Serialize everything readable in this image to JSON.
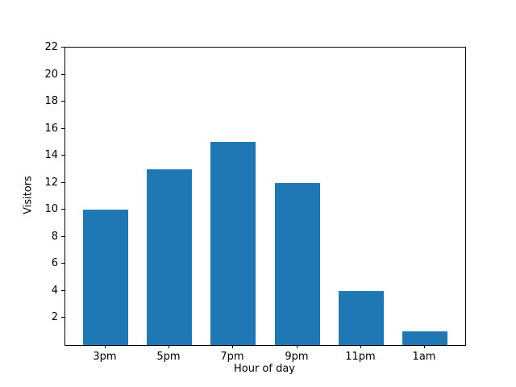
{
  "chart_data": {
    "type": "bar",
    "title": "",
    "categories": [
      "3pm",
      "5pm",
      "7pm",
      "9pm",
      "11pm",
      "1am"
    ],
    "values": [
      10,
      13,
      15,
      12,
      4,
      1
    ],
    "xlabel": "Hour of day",
    "ylabel": "Visitors",
    "ylim": [
      0,
      22
    ],
    "yticks": [
      2,
      4,
      6,
      8,
      10,
      12,
      14,
      16,
      18,
      20,
      22
    ],
    "bar_color": "#1f77b4",
    "axis_color": "#000000",
    "grid": false,
    "legend": null
  }
}
